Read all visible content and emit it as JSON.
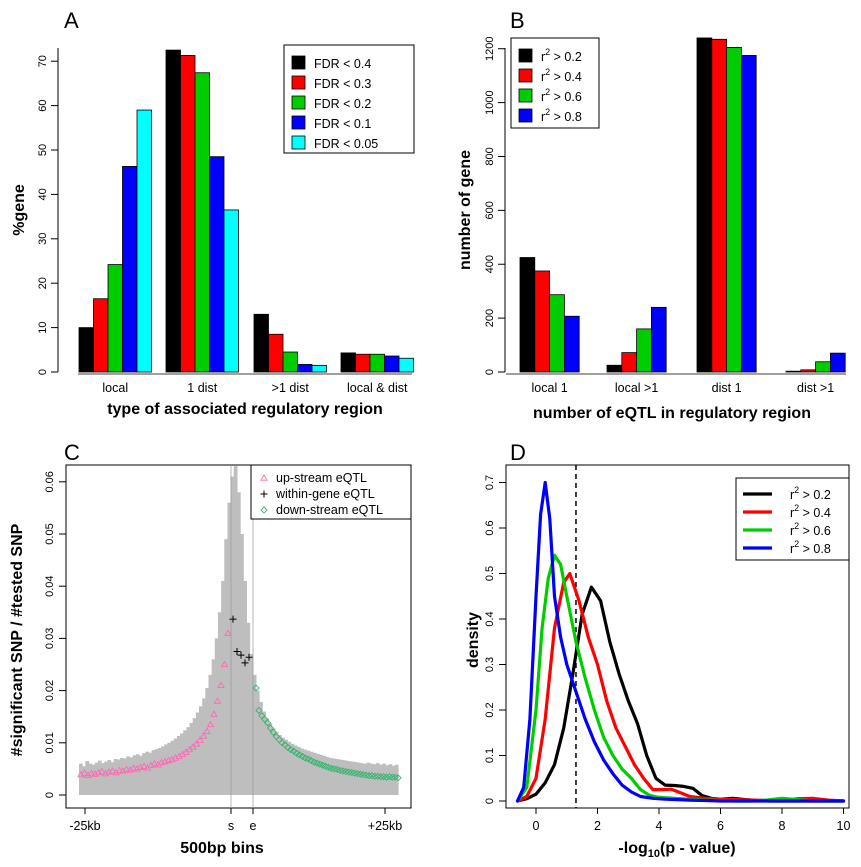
{
  "chart_data": [
    {
      "panel": "A",
      "type": "bar",
      "xlabel": "type of associated regulatory region",
      "ylabel": "%gene",
      "ylim": [
        0,
        73
      ],
      "yticks": [
        0,
        10,
        20,
        30,
        40,
        50,
        60,
        70
      ],
      "categories": [
        "local",
        "1 dist",
        ">1 dist",
        "local & dist"
      ],
      "legend_position": "top-right",
      "series": [
        {
          "name": "FDR < 0.4",
          "color": "#000000",
          "values": [
            10.0,
            72.5,
            13.0,
            4.3
          ]
        },
        {
          "name": "FDR < 0.3",
          "color": "#ff0000",
          "values": [
            16.5,
            71.3,
            8.5,
            4.0
          ]
        },
        {
          "name": "FDR < 0.2",
          "color": "#00cd00",
          "values": [
            24.2,
            67.4,
            4.5,
            4.0
          ]
        },
        {
          "name": "FDR < 0.1",
          "color": "#0000ff",
          "values": [
            46.3,
            48.5,
            1.7,
            3.6
          ]
        },
        {
          "name": "FDR < 0.05",
          "color": "#00ffff",
          "values": [
            59.0,
            36.5,
            1.5,
            3.1
          ]
        }
      ]
    },
    {
      "panel": "B",
      "type": "bar",
      "xlabel": "number of eQTL in regulatory region",
      "ylabel": "number of gene",
      "ylim": [
        0,
        1250
      ],
      "yticks": [
        0,
        200,
        400,
        600,
        800,
        1000,
        1200
      ],
      "categories": [
        "local 1",
        "local >1",
        "dist 1",
        "dist >1"
      ],
      "legend_position": "top-left",
      "series": [
        {
          "name": "r² > 0.2",
          "label_base": "r",
          "label_sup": "2",
          "label_rest": " > 0.2",
          "color": "#000000",
          "values": [
            425,
            25,
            1240,
            3
          ]
        },
        {
          "name": "r² > 0.4",
          "label_base": "r",
          "label_sup": "2",
          "label_rest": " > 0.4",
          "color": "#ff0000",
          "values": [
            375,
            72,
            1235,
            8
          ]
        },
        {
          "name": "r² > 0.6",
          "label_base": "r",
          "label_sup": "2",
          "label_rest": " > 0.6",
          "color": "#00cd00",
          "values": [
            287,
            160,
            1205,
            38
          ]
        },
        {
          "name": "r² > 0.8",
          "label_base": "r",
          "label_sup": "2",
          "label_rest": " > 0.8",
          "color": "#0000ff",
          "values": [
            207,
            240,
            1175,
            70
          ]
        }
      ]
    },
    {
      "panel": "C",
      "type": "scatter",
      "xlabel": "500bp bins",
      "ylabel": "#significant SNP / #tested SNP",
      "ylim": [
        0,
        0.066
      ],
      "yticks": [
        0.0,
        0.01,
        0.02,
        0.03,
        0.04,
        0.05,
        0.06
      ],
      "xtick_labels": [
        "-25kb",
        "s",
        "e",
        "+25kb"
      ],
      "legend_position": "top-right",
      "background_color": "#bebebe",
      "background_bars": [
        0.006,
        0.0055,
        0.0065,
        0.006,
        0.0058,
        0.0062,
        0.0066,
        0.0061,
        0.0064,
        0.0067,
        0.0063,
        0.0069,
        0.0068,
        0.0071,
        0.007,
        0.0074,
        0.0072,
        0.0076,
        0.0078,
        0.0075,
        0.008,
        0.0083,
        0.0081,
        0.0086,
        0.0088,
        0.009,
        0.0093,
        0.0097,
        0.01,
        0.0104,
        0.0108,
        0.0113,
        0.0118,
        0.0124,
        0.013,
        0.0138,
        0.0147,
        0.0158,
        0.017,
        0.0185,
        0.0205,
        0.023,
        0.026,
        0.03,
        0.035,
        0.041,
        0.049,
        0.056,
        0.061,
        0.063,
        0.058,
        0.05,
        0.041,
        0.033,
        0.027,
        0.023,
        0.02,
        0.0178,
        0.016,
        0.0147,
        0.0137,
        0.0128,
        0.0121,
        0.0115,
        0.011,
        0.0106,
        0.0102,
        0.0098,
        0.0095,
        0.0092,
        0.0089,
        0.0087,
        0.0085,
        0.0083,
        0.0081,
        0.0079,
        0.0077,
        0.0075,
        0.0073,
        0.0071,
        0.007,
        0.0069,
        0.0068,
        0.0067,
        0.0066,
        0.0065,
        0.0064,
        0.0063,
        0.0062,
        0.0061,
        0.006,
        0.0062,
        0.006,
        0.0059,
        0.0061,
        0.0058,
        0.006,
        0.0057,
        0.0059,
        0.0056,
        0.0058
      ],
      "series": [
        {
          "name": "up-stream eQTL",
          "marker": "triangle",
          "color": "#ff69b4",
          "values": [
            0.0039,
            0.0042,
            0.0038,
            0.0041,
            0.004,
            0.0043,
            0.0045,
            0.0041,
            0.0044,
            0.0046,
            0.0043,
            0.0047,
            0.0046,
            0.0049,
            0.0048,
            0.0051,
            0.005,
            0.0053,
            0.0055,
            0.0052,
            0.0057,
            0.006,
            0.0058,
            0.0062,
            0.0064,
            0.0066,
            0.0068,
            0.0071,
            0.0074,
            0.0078,
            0.0082,
            0.0087,
            0.0092,
            0.0098,
            0.0105,
            0.0113,
            0.0122,
            0.0135,
            0.0155,
            0.018,
            0.021,
            0.025,
            0.031
          ]
        },
        {
          "name": "within-gene eQTL",
          "marker": "plus",
          "color": "#000000",
          "values": [
            0.0337,
            0.0275,
            0.0268,
            0.0253,
            0.0264
          ]
        },
        {
          "name": "down-stream eQTL",
          "marker": "diamond",
          "color": "#3cb371",
          "values": [
            0.0205,
            0.0162,
            0.0152,
            0.0145,
            0.0138,
            0.0128,
            0.012,
            0.0112,
            0.0106,
            0.01,
            0.0096,
            0.0091,
            0.0087,
            0.0084,
            0.008,
            0.0077,
            0.0074,
            0.0071,
            0.0069,
            0.0066,
            0.0063,
            0.0061,
            0.0059,
            0.0057,
            0.0055,
            0.0053,
            0.0051,
            0.005,
            0.0049,
            0.0047,
            0.0046,
            0.0045,
            0.0044,
            0.0043,
            0.0042,
            0.0041,
            0.004,
            0.0039,
            0.0038,
            0.0037,
            0.0037,
            0.0036,
            0.0036,
            0.0035,
            0.0035,
            0.0034,
            0.0035,
            0.0034,
            0.0034,
            0.0033
          ]
        }
      ]
    },
    {
      "panel": "D",
      "type": "line",
      "xlabel_base": "-log",
      "xlabel_sub": "10",
      "xlabel_rest": "(p - value)",
      "ylabel": "density",
      "xlim": [
        -0.8,
        10.2
      ],
      "ylim": [
        0,
        0.72
      ],
      "xticks": [
        0,
        2,
        4,
        6,
        8,
        10
      ],
      "yticks": [
        0.0,
        0.1,
        0.2,
        0.3,
        0.4,
        0.5,
        0.6,
        0.7
      ],
      "vline_x": 1.3,
      "legend_position": "top-right",
      "series": [
        {
          "name": "r² > 0.2",
          "label_base": "r",
          "label_sup": "2",
          "label_rest": " > 0.2",
          "color": "#000000",
          "x": [
            -0.6,
            -0.3,
            0,
            0.3,
            0.6,
            0.9,
            1.2,
            1.5,
            1.8,
            2.1,
            2.4,
            2.7,
            3.0,
            3.3,
            3.6,
            3.9,
            4.2,
            4.5,
            4.8,
            5.1,
            5.4,
            5.7,
            6.0,
            6.4,
            6.8,
            7.2,
            7.6,
            8.0,
            8.5,
            9.0,
            9.5,
            10.0
          ],
          "y": [
            0.0,
            0.005,
            0.015,
            0.04,
            0.08,
            0.16,
            0.28,
            0.41,
            0.47,
            0.44,
            0.35,
            0.28,
            0.22,
            0.17,
            0.1,
            0.05,
            0.035,
            0.034,
            0.032,
            0.028,
            0.012,
            0.006,
            0.004,
            0.006,
            0.003,
            0.001,
            0.0,
            0.0,
            0.0,
            0.0,
            0.0,
            0.0
          ]
        },
        {
          "name": "r² > 0.4",
          "label_base": "r",
          "label_sup": "2",
          "label_rest": " > 0.4",
          "color": "#ff0000",
          "x": [
            -0.6,
            -0.3,
            0,
            0.3,
            0.6,
            0.9,
            1.1,
            1.4,
            1.7,
            2.0,
            2.3,
            2.6,
            2.9,
            3.2,
            3.5,
            3.8,
            4.1,
            4.4,
            4.7,
            5.0,
            5.5,
            6.0,
            6.5,
            7.0,
            7.5,
            8.0,
            8.5,
            9.0,
            9.5,
            10.0
          ],
          "y": [
            0.0,
            0.01,
            0.05,
            0.18,
            0.38,
            0.48,
            0.5,
            0.44,
            0.36,
            0.3,
            0.22,
            0.16,
            0.12,
            0.08,
            0.05,
            0.025,
            0.025,
            0.026,
            0.018,
            0.01,
            0.006,
            0.004,
            0.003,
            0.002,
            0.001,
            0.0,
            0.005,
            0.006,
            0.002,
            0.0
          ]
        },
        {
          "name": "r² > 0.6",
          "label_base": "r",
          "label_sup": "2",
          "label_rest": " > 0.6",
          "color": "#00cd00",
          "x": [
            -0.6,
            -0.3,
            0,
            0.2,
            0.4,
            0.6,
            0.8,
            1.0,
            1.3,
            1.6,
            1.9,
            2.2,
            2.5,
            2.8,
            3.1,
            3.4,
            3.7,
            4.0,
            4.5,
            5.0,
            5.5,
            6.0,
            6.5,
            7.0,
            7.5,
            8.0,
            8.5,
            9.0,
            9.5,
            10.0
          ],
          "y": [
            0.0,
            0.03,
            0.2,
            0.38,
            0.49,
            0.54,
            0.52,
            0.45,
            0.35,
            0.27,
            0.2,
            0.14,
            0.1,
            0.07,
            0.05,
            0.025,
            0.012,
            0.008,
            0.006,
            0.004,
            0.002,
            0.001,
            0.0,
            0.0,
            0.002,
            0.006,
            0.003,
            0.0,
            0.0,
            0.0
          ]
        },
        {
          "name": "r² > 0.8",
          "label_base": "r",
          "label_sup": "2",
          "label_rest": " > 0.8",
          "color": "#0000ff",
          "x": [
            -0.6,
            -0.4,
            -0.2,
            0,
            0.15,
            0.3,
            0.45,
            0.6,
            0.8,
            1.0,
            1.3,
            1.6,
            1.9,
            2.2,
            2.5,
            2.8,
            3.1,
            3.4,
            3.8,
            4.2,
            4.6,
            5.0,
            5.5,
            6.0,
            7.0,
            8.0,
            9.0,
            10.0
          ],
          "y": [
            0.0,
            0.03,
            0.18,
            0.45,
            0.63,
            0.7,
            0.62,
            0.45,
            0.36,
            0.3,
            0.24,
            0.18,
            0.13,
            0.09,
            0.06,
            0.035,
            0.02,
            0.01,
            0.006,
            0.004,
            0.003,
            0.002,
            0.001,
            0.0,
            0.0,
            0.0,
            0.0,
            0.0
          ]
        }
      ]
    }
  ]
}
